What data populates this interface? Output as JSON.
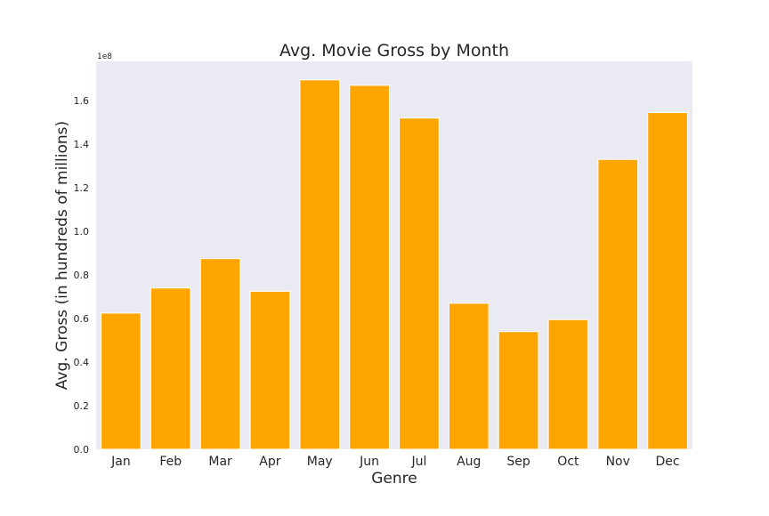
{
  "chart_data": {
    "type": "bar",
    "title": "Avg. Movie Gross by Month",
    "xlabel": "Genre",
    "ylabel": "Avg. Gross (in hundreds of millions)",
    "y_offset_label": "1e8",
    "categories": [
      "Jan",
      "Feb",
      "Mar",
      "Apr",
      "May",
      "Jun",
      "Jul",
      "Aug",
      "Sep",
      "Oct",
      "Nov",
      "Dec"
    ],
    "values": [
      62500000,
      74000000,
      87500000,
      72500000,
      169500000,
      167000000,
      152000000,
      67000000,
      54000000,
      59500000,
      133000000,
      154500000
    ],
    "ylim": [
      0,
      178000000
    ],
    "y_ticks": [
      0,
      20000000,
      40000000,
      60000000,
      80000000,
      100000000,
      120000000,
      140000000,
      160000000
    ],
    "y_tick_labels": [
      "0.0",
      "0.2",
      "0.4",
      "0.6",
      "0.8",
      "1.0",
      "1.2",
      "1.4",
      "1.6"
    ],
    "bar_color": "#ffa500",
    "background_color": "#eaeaf2",
    "grid": false,
    "legend": "none"
  }
}
